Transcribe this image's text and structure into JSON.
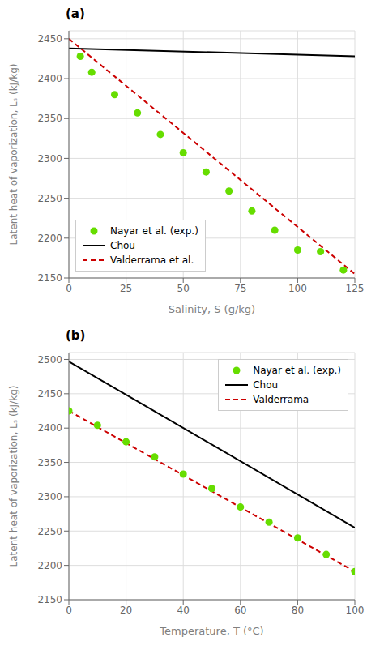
{
  "chart_data": [
    {
      "type": "line",
      "title": "(a)",
      "xlabel": "Salinity, S (g/kg)",
      "ylabel": "Latent heat of vaporization, Lₛ (kJ/kg)",
      "xlim": [
        0,
        125
      ],
      "ylim": [
        2150,
        2460
      ],
      "xticks": [
        0,
        25,
        50,
        75,
        100,
        125
      ],
      "yticks": [
        2150,
        2200,
        2250,
        2300,
        2350,
        2400,
        2450
      ],
      "grid": true,
      "legend": "lower left",
      "series": [
        {
          "name": "Nayar et al. (exp.)",
          "type": "scatter",
          "marker": "circle",
          "color": "#66dd00",
          "x": [
            5,
            10,
            20,
            30,
            40,
            50,
            60,
            70,
            80,
            90,
            100,
            110,
            120
          ],
          "values": [
            2428,
            2408,
            2380,
            2357,
            2330,
            2307,
            2283,
            2259,
            2234,
            2210,
            2185,
            2183,
            2160
          ]
        },
        {
          "name": "Chou",
          "type": "line",
          "line_style": "solid",
          "color": "#000000",
          "x": [
            0,
            125
          ],
          "values": [
            2438,
            2428
          ]
        },
        {
          "name": "Valderrama et al.",
          "type": "line",
          "line_style": "dashed",
          "color": "#cc0000",
          "x": [
            0,
            125
          ],
          "values": [
            2450,
            2155
          ]
        }
      ]
    },
    {
      "type": "line",
      "title": "(b)",
      "xlabel": "Temperature, T (°C)",
      "ylabel": "Latent heat of vaporization, Lₛ (kJ/kg)",
      "xlim": [
        0,
        100
      ],
      "ylim": [
        2150,
        2510
      ],
      "xticks": [
        0,
        20,
        40,
        60,
        80,
        100
      ],
      "yticks": [
        2150,
        2200,
        2250,
        2300,
        2350,
        2400,
        2450,
        2500
      ],
      "grid": true,
      "legend": "upper right",
      "series": [
        {
          "name": "Nayar et al. (exp.)",
          "type": "scatter",
          "marker": "circle",
          "color": "#66dd00",
          "x": [
            0,
            10,
            20,
            30,
            40,
            50,
            60,
            70,
            80,
            90,
            100
          ],
          "values": [
            2425,
            2404,
            2380,
            2358,
            2333,
            2312,
            2285,
            2263,
            2240,
            2216,
            2191
          ]
        },
        {
          "name": "Chou",
          "type": "line",
          "line_style": "solid",
          "color": "#000000",
          "x": [
            0,
            100
          ],
          "values": [
            2497,
            2255
          ]
        },
        {
          "name": "Valderrama",
          "type": "line",
          "line_style": "dashed",
          "color": "#cc0000",
          "x": [
            0,
            100
          ],
          "values": [
            2425,
            2191
          ]
        }
      ]
    }
  ]
}
